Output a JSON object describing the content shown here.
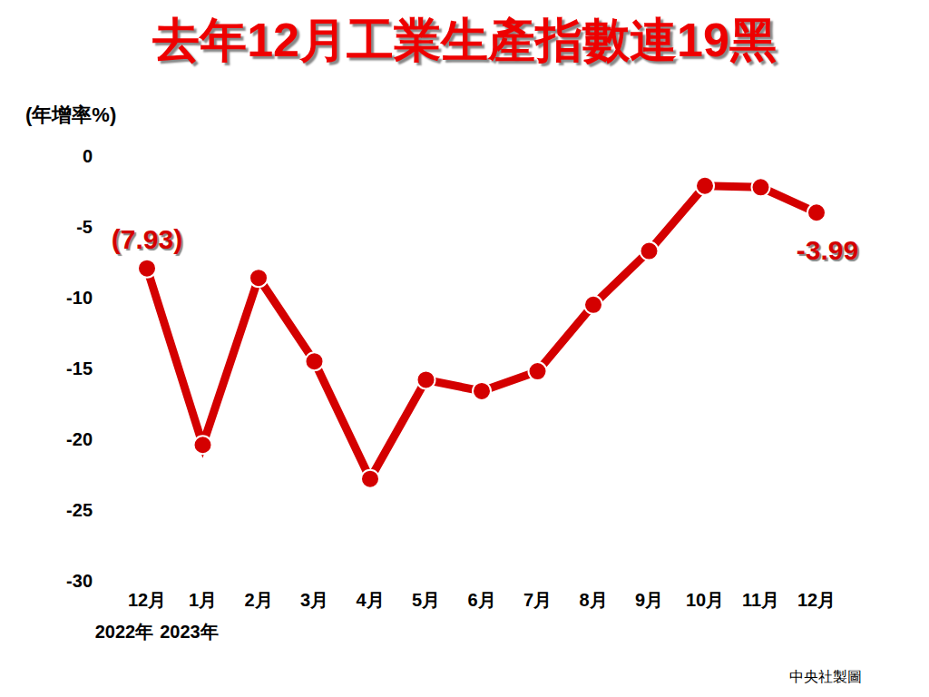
{
  "chart_data": {
    "type": "line",
    "title": "去年12月工業生產指數連19黑",
    "y_label": "(年增率%)",
    "categories": [
      "12月",
      "1月",
      "2月",
      "3月",
      "4月",
      "5月",
      "6月",
      "7月",
      "8月",
      "9月",
      "10月",
      "11月",
      "12月"
    ],
    "year_labels": [
      "2022年",
      "2023年"
    ],
    "values": [
      -7.93,
      -20.4,
      -8.6,
      -14.5,
      -22.8,
      -15.8,
      -16.6,
      -15.2,
      -10.5,
      -6.7,
      -2.1,
      -2.2,
      -3.99
    ],
    "color": "#d40000",
    "ylim": [
      -30,
      0
    ],
    "yticks": [
      0,
      -5,
      -10,
      -15,
      -20,
      -25,
      -30
    ],
    "grid": false,
    "marker": "circle",
    "annotations": [
      "(7.93)",
      "-3.99"
    ],
    "source": "中央社製圖"
  }
}
